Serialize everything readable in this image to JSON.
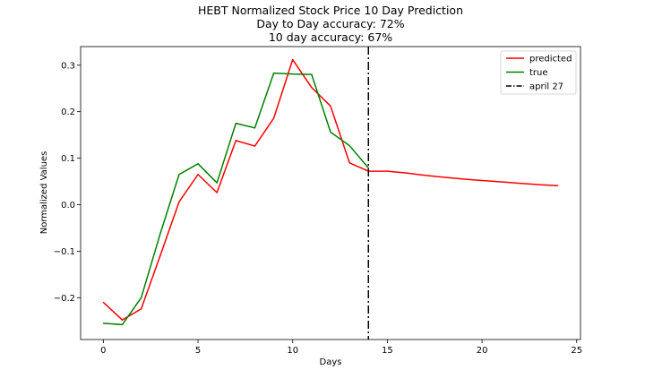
{
  "chart_data": {
    "type": "line",
    "title_lines": [
      "HEBT Normalized Stock Price 10 Day Prediction",
      "Day to Day accuracy: 72%",
      "10 day accuracy: 67%"
    ],
    "xlabel": "Days",
    "ylabel": "Normalized Values",
    "xlim": [
      -1.2,
      25.2
    ],
    "ylim": [
      -0.29,
      0.34
    ],
    "xticks": [
      0,
      5,
      10,
      15,
      20,
      25
    ],
    "xtick_labels": [
      "0",
      "5",
      "10",
      "15",
      "20",
      "25"
    ],
    "yticks": [
      -0.2,
      -0.1,
      0.0,
      0.1,
      0.2,
      0.3
    ],
    "ytick_labels": [
      "−0.2",
      "−0.1",
      "0.0",
      "0.1",
      "0.2",
      "0.3"
    ],
    "series": [
      {
        "name": "predicted",
        "color": "#ff0000",
        "x": [
          0,
          1,
          2,
          3,
          4,
          5,
          6,
          7,
          8,
          9,
          10,
          11,
          12,
          13,
          14,
          15,
          16,
          17,
          18,
          19,
          20,
          21,
          22,
          23,
          24
        ],
        "y": [
          -0.21,
          -0.248,
          -0.224,
          -0.11,
          0.006,
          0.065,
          0.026,
          0.138,
          0.126,
          0.186,
          0.312,
          0.252,
          0.212,
          0.09,
          0.072,
          0.072,
          0.068,
          0.063,
          0.059,
          0.055,
          0.052,
          0.049,
          0.046,
          0.043,
          0.041
        ]
      },
      {
        "name": "true",
        "color": "#008000",
        "x": [
          0,
          1,
          2,
          3,
          4,
          5,
          6,
          7,
          8,
          9,
          10,
          11,
          12,
          13,
          14
        ],
        "y": [
          -0.255,
          -0.258,
          -0.2,
          -0.063,
          0.065,
          0.088,
          0.047,
          0.175,
          0.165,
          0.283,
          0.281,
          0.28,
          0.156,
          0.127,
          0.079
        ]
      }
    ],
    "vline": {
      "name": "april 27",
      "x": 14,
      "color": "#000000",
      "style": "dash-dot"
    },
    "legend_position": "top-right",
    "grid": false
  }
}
